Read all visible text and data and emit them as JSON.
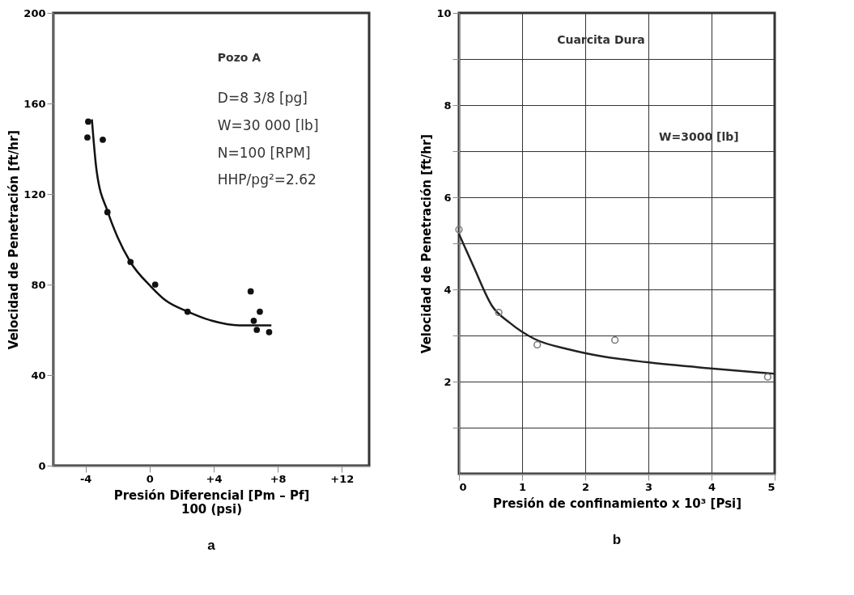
{
  "chart_data": [
    {
      "type": "scatter",
      "title": "a",
      "xlabel": "Presión Diferencial [Pm – Pf]\n100 (psi)",
      "ylabel": "Velocidad de Penetración  [ft/hr]",
      "annotations": [
        "Pozo A",
        "D=8 3/8 [pg]",
        "W=30 000 [lb]",
        "N=100 [RPM]",
        "HHP/pg²=2.62"
      ],
      "xlim": [
        -6,
        13.7
      ],
      "xticks": [
        {
          "value": -4,
          "label": "-4"
        },
        0,
        {
          "value": 4,
          "label": "+4"
        },
        {
          "value": 8,
          "label": "+8"
        },
        {
          "value": 12,
          "label": "+12"
        }
      ],
      "ylim": [
        0,
        200
      ],
      "yticks": [
        0,
        40,
        80,
        120,
        160,
        200
      ],
      "grid": false,
      "series": [
        {
          "marker": "circle",
          "color": "#111111",
          "x": [
            -3.83,
            -3.88,
            -2.92,
            -2.63,
            -1.19,
            0.35,
            2.37,
            6.31,
            6.88,
            6.5,
            6.69,
            7.46
          ],
          "values": [
            152,
            145,
            144,
            112,
            90,
            80,
            68,
            77,
            68,
            64,
            60,
            59
          ]
        },
        {
          "type": "line",
          "marker": "none",
          "color": "#111111",
          "x": [
            -3.6,
            -3.3,
            -2.6,
            -2.0,
            -1.2,
            0.1,
            1.0,
            2.4,
            3.9,
            5.6,
            6.8,
            7.6
          ],
          "values": [
            153,
            130,
            112,
            101,
            90,
            79,
            73,
            68,
            64,
            62,
            62,
            62
          ]
        }
      ]
    },
    {
      "type": "scatter",
      "title": "b",
      "xlabel": "Presión de confinamiento x 10³ [Psi]",
      "ylabel": "Velocidad de Penetración  [ft/hr]",
      "annotations": [
        "Cuarcita Dura",
        "W=3000 [lb]"
      ],
      "xlim": [
        0,
        5
      ],
      "xticks": [
        0,
        1,
        2,
        3,
        4,
        5
      ],
      "ylim": [
        0,
        10
      ],
      "yticks": [
        {
          "value": 1,
          "label": null
        },
        2,
        {
          "value": 3,
          "label": null
        },
        4,
        {
          "value": 5,
          "label": null
        },
        6,
        {
          "value": 7,
          "label": null
        },
        8,
        {
          "value": 9,
          "label": null
        },
        10
      ],
      "grid": true,
      "series": [
        {
          "marker": "circle",
          "color": "#777777",
          "x": [
            0,
            0.63,
            1.24,
            2.47,
            4.89
          ],
          "values": [
            5.3,
            3.5,
            2.8,
            2.9,
            2.1
          ]
        },
        {
          "type": "line",
          "marker": "none",
          "color": "#222222",
          "x": [
            0,
            0.23,
            0.52,
            0.81,
            1.19,
            1.77,
            2.3,
            2.98,
            3.95,
            4.91,
            5
          ],
          "values": [
            5.2,
            4.5,
            3.65,
            3.27,
            2.93,
            2.69,
            2.54,
            2.42,
            2.29,
            2.18,
            2.17
          ]
        }
      ]
    }
  ]
}
